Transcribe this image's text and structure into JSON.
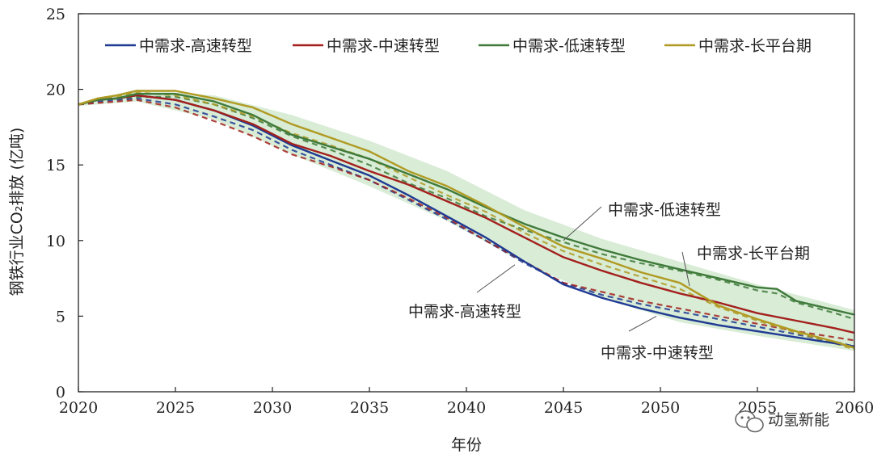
{
  "chart_data": {
    "type": "line",
    "xlabel": "年份",
    "ylabel": "钢铁行业CO₂排放 (亿吨)",
    "xlim": [
      2020,
      2060
    ],
    "ylim": [
      0,
      25
    ],
    "xticks": [
      "2020",
      "2025",
      "2030",
      "2035",
      "2040",
      "2045",
      "2050",
      "2055",
      "2060"
    ],
    "yticks": [
      "0",
      "5",
      "10",
      "15",
      "20",
      "25"
    ],
    "legend_position": "top",
    "series": [
      {
        "name": "中需求-高速转型",
        "color": "#1f3a93",
        "x": [
          2020,
          2021,
          2022,
          2023,
          2025,
          2027,
          2029,
          2031,
          2033,
          2035,
          2037,
          2039,
          2041,
          2043,
          2045,
          2047,
          2049,
          2051,
          2053,
          2055,
          2057,
          2059,
          2060
        ],
        "values": [
          19.0,
          19.3,
          19.4,
          19.6,
          19.3,
          18.6,
          17.6,
          16.3,
          15.3,
          14.3,
          13.0,
          11.6,
          10.2,
          8.6,
          7.1,
          6.2,
          5.5,
          4.9,
          4.4,
          4.0,
          3.6,
          3.2,
          3.0
        ],
        "dashed_values": [
          19.0,
          19.2,
          19.3,
          19.4,
          19.0,
          18.2,
          17.3,
          16.0,
          15.0,
          14.0,
          12.7,
          11.4,
          10.0,
          8.5,
          7.2,
          6.4,
          5.8,
          5.3,
          4.8,
          4.3,
          3.8,
          3.3,
          3.0
        ]
      },
      {
        "name": "中需求-中速转型",
        "color": "#a3201d",
        "x": [
          2020,
          2021,
          2022,
          2023,
          2025,
          2027,
          2029,
          2031,
          2033,
          2035,
          2037,
          2039,
          2041,
          2043,
          2045,
          2047,
          2049,
          2051,
          2053,
          2055,
          2057,
          2059,
          2060
        ],
        "values": [
          19.0,
          19.3,
          19.4,
          19.6,
          19.3,
          18.6,
          17.7,
          16.4,
          15.6,
          14.6,
          13.7,
          12.6,
          11.5,
          10.2,
          8.9,
          8.0,
          7.2,
          6.5,
          5.9,
          5.2,
          4.7,
          4.2,
          3.9
        ],
        "dashed_values": [
          19.0,
          19.1,
          19.2,
          19.3,
          18.8,
          17.9,
          16.9,
          15.7,
          14.9,
          14.0,
          12.8,
          11.5,
          10.0,
          8.6,
          7.2,
          6.6,
          6.0,
          5.5,
          5.0,
          4.5,
          4.0,
          3.6,
          3.4
        ]
      },
      {
        "name": "中需求-低速转型",
        "color": "#3f7a3a",
        "x": [
          2020,
          2021,
          2022,
          2023,
          2025,
          2027,
          2029,
          2031,
          2033,
          2035,
          2037,
          2039,
          2041,
          2043,
          2045,
          2047,
          2049,
          2051,
          2053,
          2055,
          2056,
          2057,
          2059,
          2060
        ],
        "values": [
          19.0,
          19.3,
          19.4,
          19.7,
          19.7,
          19.2,
          18.3,
          17.0,
          16.2,
          15.4,
          14.4,
          13.4,
          12.2,
          11.1,
          10.2,
          9.4,
          8.7,
          8.1,
          7.5,
          6.9,
          6.8,
          6.0,
          5.4,
          5.1
        ],
        "dashed_values": [
          19.0,
          19.3,
          19.4,
          19.5,
          19.5,
          19.0,
          18.1,
          16.9,
          16.0,
          15.0,
          13.8,
          12.8,
          11.6,
          10.7,
          9.9,
          9.1,
          8.5,
          8.0,
          7.4,
          6.7,
          6.5,
          5.9,
          5.2,
          4.8
        ]
      },
      {
        "name": "中需求-长平台期",
        "color": "#b09a22",
        "x": [
          2020,
          2021,
          2022,
          2023,
          2025,
          2027,
          2029,
          2031,
          2033,
          2035,
          2037,
          2039,
          2041,
          2043,
          2045,
          2047,
          2049,
          2051,
          2053,
          2055,
          2057,
          2059,
          2060
        ],
        "values": [
          19.0,
          19.4,
          19.6,
          19.9,
          19.9,
          19.4,
          18.8,
          17.7,
          16.8,
          15.9,
          14.6,
          13.6,
          12.3,
          10.9,
          9.6,
          8.8,
          7.9,
          7.2,
          5.7,
          4.8,
          4.0,
          3.3,
          2.9
        ],
        "dashed_values": [
          19.0,
          19.3,
          19.5,
          19.8,
          19.6,
          19.0,
          18.2,
          17.1,
          16.3,
          15.4,
          14.2,
          13.0,
          11.9,
          10.5,
          9.3,
          8.4,
          7.6,
          6.8,
          5.6,
          4.7,
          3.9,
          3.2,
          2.8
        ]
      }
    ],
    "band": {
      "x": [
        2020,
        2023,
        2027,
        2031,
        2035,
        2039,
        2043,
        2047,
        2051,
        2055,
        2060
      ],
      "upper": [
        19.1,
        20.0,
        19.6,
        18.3,
        16.6,
        14.6,
        12.0,
        10.1,
        8.6,
        7.1,
        5.4
      ],
      "lower": [
        18.9,
        19.2,
        18.0,
        15.7,
        13.6,
        11.3,
        8.5,
        6.2,
        4.6,
        3.7,
        2.7
      ]
    },
    "annotations": [
      {
        "text": "中需求-低速转型",
        "target": [
          2045.0,
          10.0
        ]
      },
      {
        "text": "中需求-长平台期",
        "target": [
          2051.5,
          7.0
        ]
      },
      {
        "text": "中需求-高速转型",
        "target": [
          2042.5,
          8.4
        ]
      },
      {
        "text": "中需求-中速转型",
        "target": [
          2049.8,
          5.0
        ]
      }
    ],
    "watermark": "动氢新能"
  }
}
